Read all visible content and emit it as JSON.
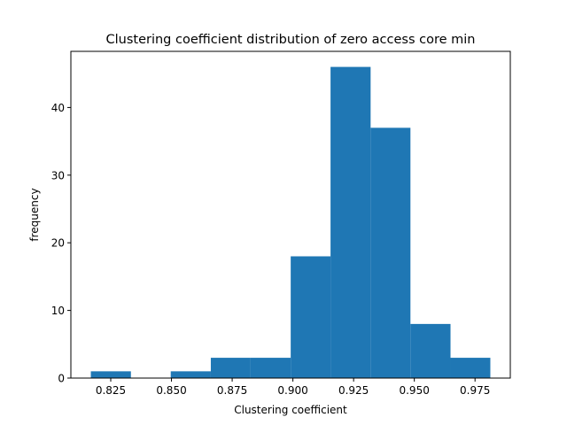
{
  "chart_data": {
    "type": "bar",
    "title": "Clustering coefficient distribution of zero access core min",
    "xlabel": "Clustering coefficient",
    "ylabel": "frequency",
    "bins": [
      {
        "x0": 0.8168,
        "x1": 0.8333,
        "count": 1
      },
      {
        "x0": 0.8333,
        "x1": 0.8497,
        "count": 0
      },
      {
        "x0": 0.8497,
        "x1": 0.8662,
        "count": 1
      },
      {
        "x0": 0.8662,
        "x1": 0.8826,
        "count": 3
      },
      {
        "x0": 0.8826,
        "x1": 0.8991,
        "count": 3
      },
      {
        "x0": 0.8991,
        "x1": 0.9155,
        "count": 18
      },
      {
        "x0": 0.9155,
        "x1": 0.932,
        "count": 46
      },
      {
        "x0": 0.932,
        "x1": 0.9484,
        "count": 37
      },
      {
        "x0": 0.9484,
        "x1": 0.9649,
        "count": 8
      },
      {
        "x0": 0.9649,
        "x1": 0.9813,
        "count": 3
      }
    ],
    "xlim": [
      0.80858,
      0.98952
    ],
    "ylim": [
      0,
      48.3
    ],
    "xticks": [
      0.825,
      0.85,
      0.875,
      0.9,
      0.925,
      0.95,
      0.975
    ],
    "xtick_labels": [
      "0.825",
      "0.850",
      "0.875",
      "0.900",
      "0.925",
      "0.950",
      "0.975"
    ],
    "yticks": [
      0,
      10,
      20,
      30,
      40
    ],
    "ytick_labels": [
      "0",
      "10",
      "20",
      "30",
      "40"
    ],
    "grid": false,
    "bar_color": "#1f77b4"
  }
}
